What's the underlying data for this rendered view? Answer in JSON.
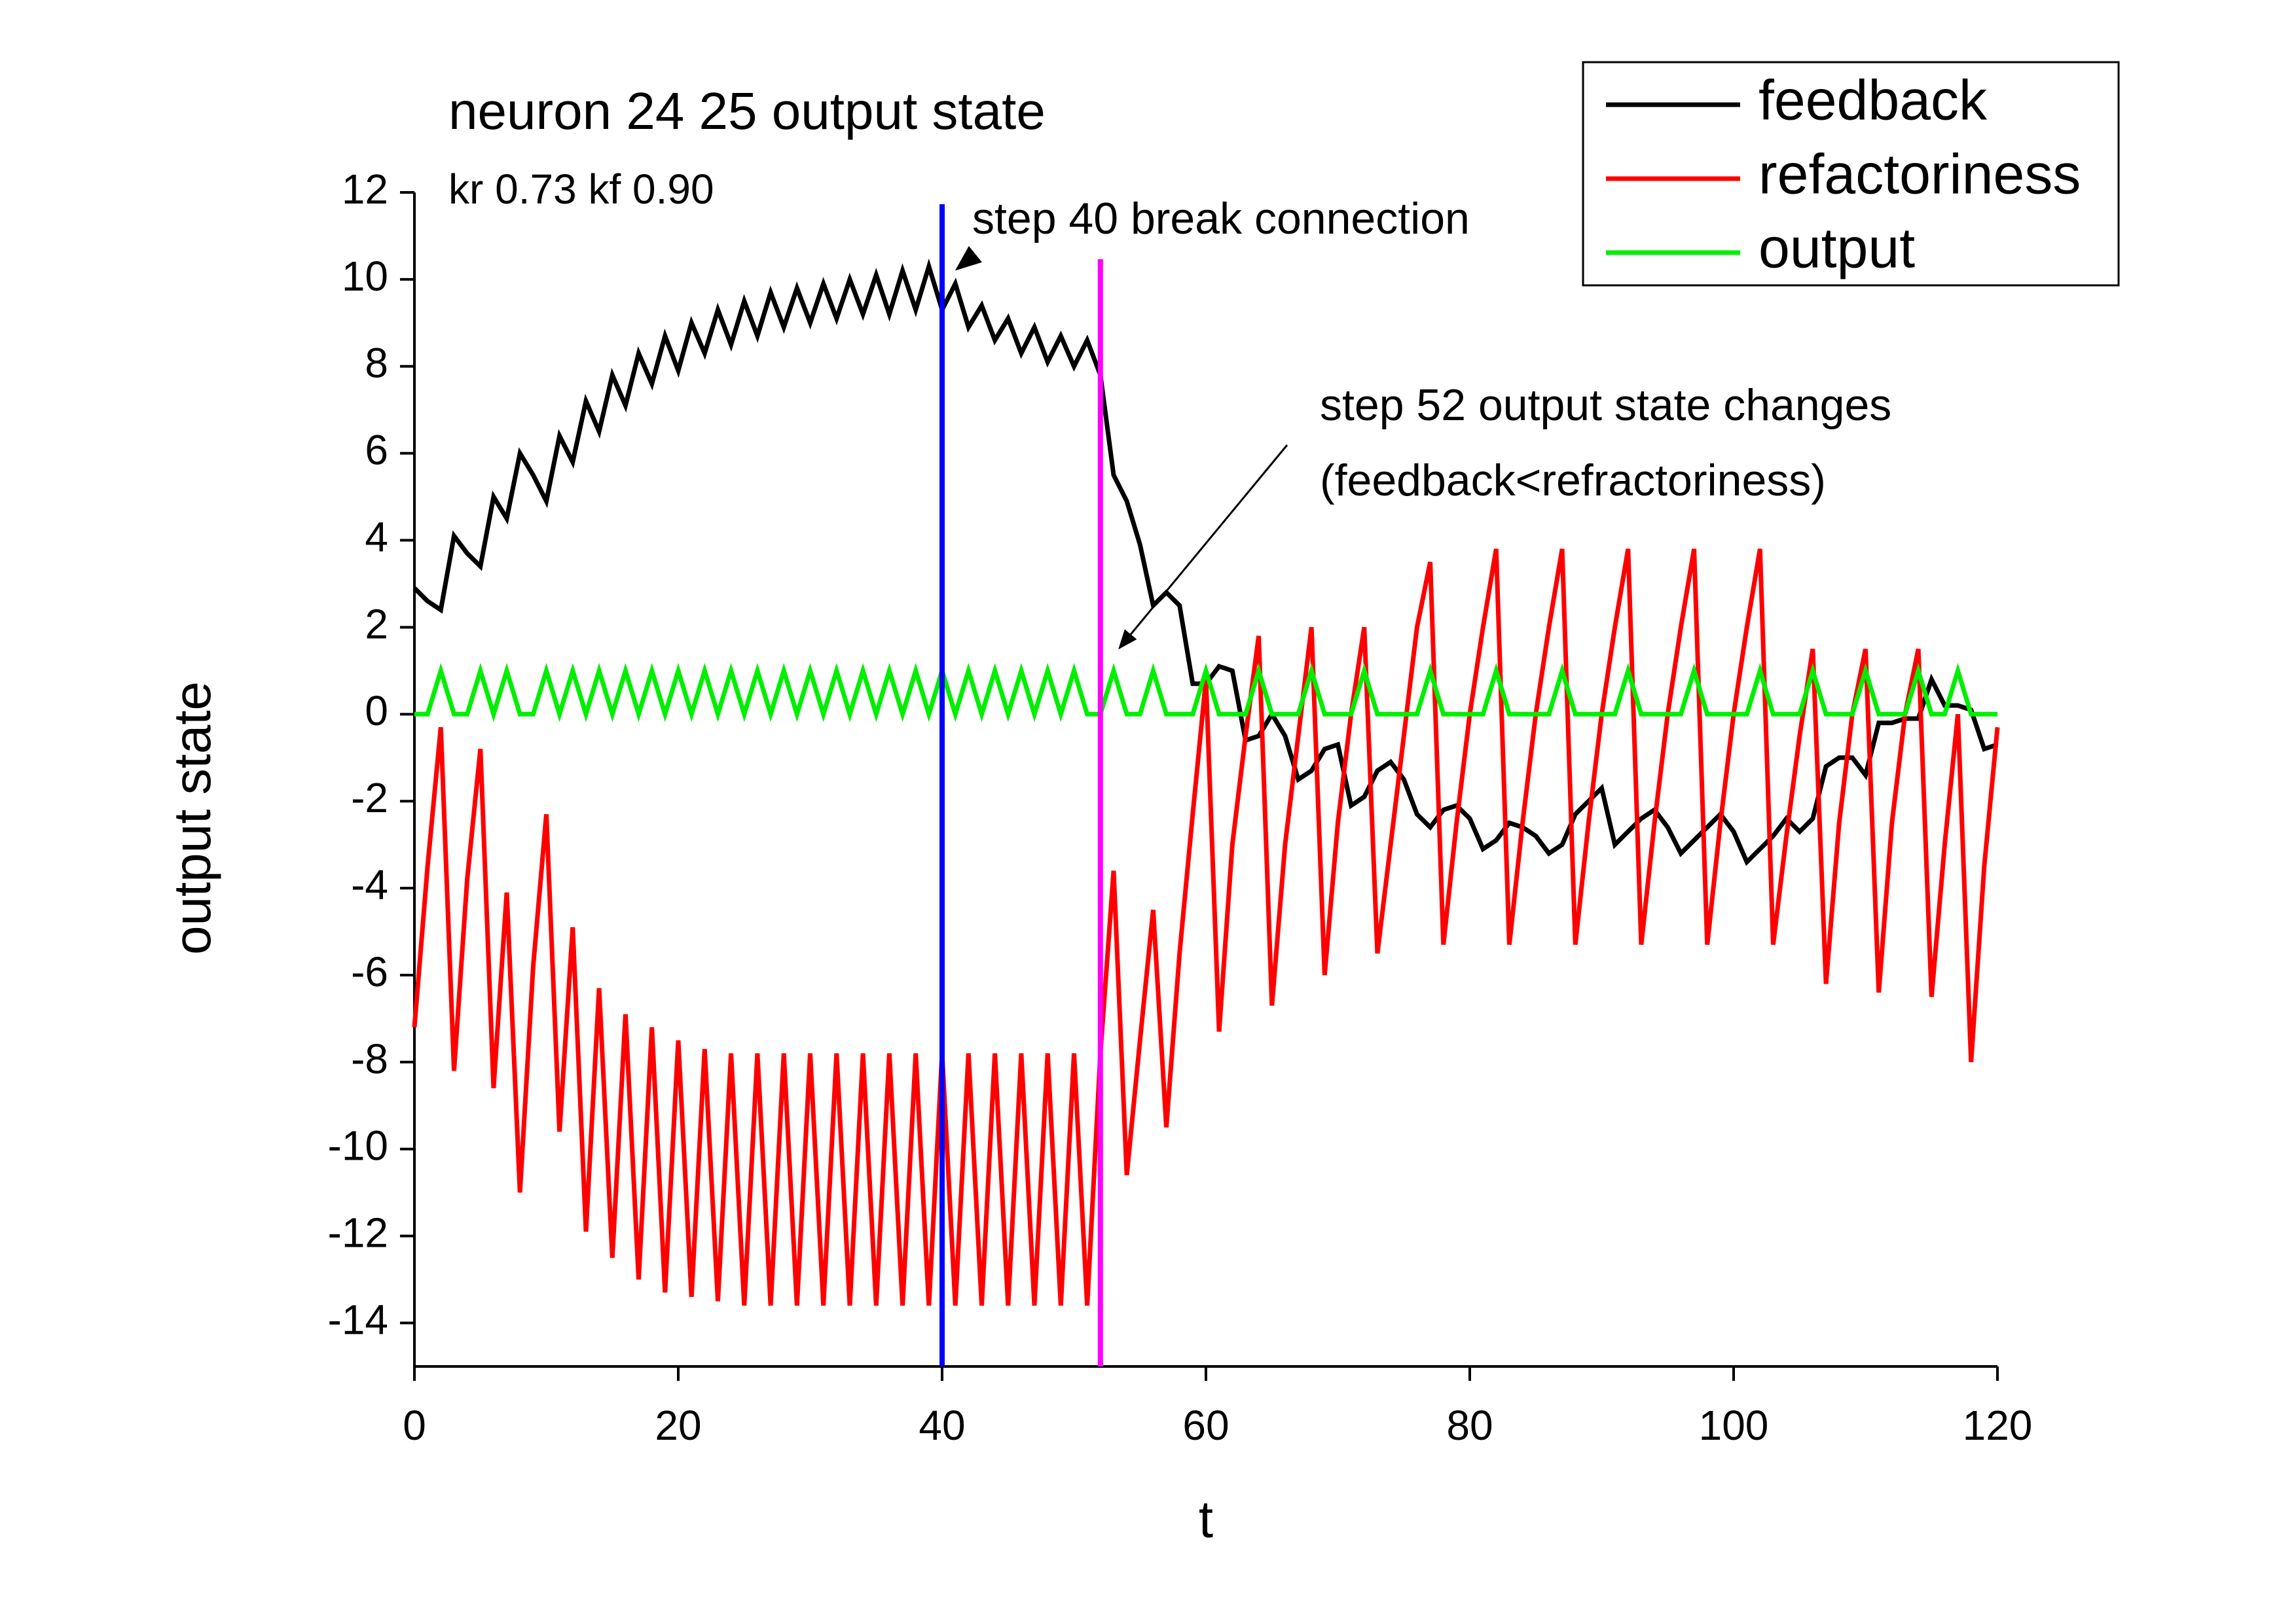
{
  "chart_data": {
    "type": "line",
    "title": "neuron 24 25 output state",
    "subtitle": "kr 0.73 kf 0.90",
    "x_label": "t",
    "y_label": "output state",
    "xlim": [
      0,
      120
    ],
    "xticks": [
      0,
      20,
      40,
      60,
      80,
      100,
      120
    ],
    "ylim": [
      -15,
      12
    ],
    "yticks": [
      -14,
      -12,
      -10,
      -8,
      -6,
      -4,
      -2,
      0,
      2,
      4,
      6,
      8,
      10,
      12
    ],
    "legend": "upper right",
    "x": [
      0,
      1,
      2,
      3,
      4,
      5,
      6,
      7,
      8,
      9,
      10,
      11,
      12,
      13,
      14,
      15,
      16,
      17,
      18,
      19,
      20,
      21,
      22,
      23,
      24,
      25,
      26,
      27,
      28,
      29,
      30,
      31,
      32,
      33,
      34,
      35,
      36,
      37,
      38,
      39,
      40,
      41,
      42,
      43,
      44,
      45,
      46,
      47,
      48,
      49,
      50,
      51,
      52,
      53,
      54,
      55,
      56,
      57,
      58,
      59,
      60,
      61,
      62,
      63,
      64,
      65,
      66,
      67,
      68,
      69,
      70,
      71,
      72,
      73,
      74,
      75,
      76,
      77,
      78,
      79,
      80,
      81,
      82,
      83,
      84,
      85,
      86,
      87,
      88,
      89,
      90,
      91,
      92,
      93,
      94,
      95,
      96,
      97,
      98,
      99,
      100,
      101,
      102,
      103,
      104,
      105,
      106,
      107,
      108,
      109,
      110,
      111,
      112,
      113,
      114,
      115,
      116,
      117,
      118,
      119,
      120
    ],
    "series": [
      {
        "name": "feedback",
        "color": "#000000",
        "values": [
          2.9,
          2.6,
          2.4,
          4.1,
          3.7,
          3.4,
          5.0,
          4.5,
          6.0,
          5.5,
          4.9,
          6.4,
          5.8,
          7.2,
          6.5,
          7.8,
          7.1,
          8.3,
          7.6,
          8.7,
          7.9,
          9.0,
          8.3,
          9.3,
          8.5,
          9.5,
          8.7,
          9.7,
          8.9,
          9.8,
          9.0,
          9.9,
          9.1,
          10.0,
          9.2,
          10.1,
          9.2,
          10.2,
          9.3,
          10.3,
          9.3,
          9.9,
          8.9,
          9.4,
          8.6,
          9.1,
          8.3,
          8.9,
          8.1,
          8.7,
          8.0,
          8.6,
          7.8,
          5.5,
          4.9,
          3.9,
          2.5,
          2.8,
          2.5,
          0.7,
          0.7,
          1.1,
          1.0,
          -0.6,
          -0.5,
          0.0,
          -0.5,
          -1.5,
          -1.3,
          -0.8,
          -0.7,
          -2.1,
          -1.9,
          -1.3,
          -1.1,
          -1.5,
          -2.3,
          -2.6,
          -2.2,
          -2.1,
          -2.4,
          -3.1,
          -2.9,
          -2.5,
          -2.6,
          -2.8,
          -3.2,
          -3.0,
          -2.3,
          -2.0,
          -1.7,
          -3.0,
          -2.7,
          -2.4,
          -2.2,
          -2.6,
          -3.2,
          -2.9,
          -2.6,
          -2.3,
          -2.7,
          -3.4,
          -3.1,
          -2.8,
          -2.4,
          -2.7,
          -2.4,
          -1.2,
          -1.0,
          -1.0,
          -1.4,
          -0.2,
          -0.2,
          -0.1,
          -0.1,
          0.8,
          0.2,
          0.2,
          0.1,
          -0.8,
          -0.7
        ]
      },
      {
        "name": "refactoriness",
        "color": "#ff0000",
        "values": [
          -7.2,
          -3.5,
          -0.3,
          -8.2,
          -3.8,
          -0.8,
          -8.6,
          -4.1,
          -11.0,
          -5.8,
          -2.3,
          -9.6,
          -4.9,
          -11.9,
          -6.3,
          -12.5,
          -6.9,
          -13.0,
          -7.2,
          -13.3,
          -7.5,
          -13.4,
          -7.7,
          -13.5,
          -7.8,
          -13.6,
          -7.8,
          -13.6,
          -7.8,
          -13.6,
          -7.8,
          -13.6,
          -7.8,
          -13.6,
          -7.8,
          -13.6,
          -7.8,
          -13.6,
          -7.8,
          -13.6,
          -7.8,
          -13.6,
          -7.8,
          -13.6,
          -7.8,
          -13.6,
          -7.8,
          -13.6,
          -7.8,
          -13.6,
          -7.8,
          -13.6,
          -7.8,
          -3.6,
          -10.6,
          -7.5,
          -4.5,
          -9.5,
          -5.5,
          -2.3,
          0.8,
          -7.3,
          -3.0,
          -0.5,
          1.8,
          -6.7,
          -3.0,
          -0.5,
          2.0,
          -6.0,
          -2.5,
          0.0,
          2.0,
          -5.5,
          -3.0,
          -0.5,
          2.0,
          3.5,
          -5.3,
          -2.5,
          0.0,
          2.0,
          3.8,
          -5.3,
          -2.5,
          0.0,
          2.0,
          3.8,
          -5.3,
          -2.5,
          0.0,
          2.0,
          3.8,
          -5.3,
          -2.5,
          0.0,
          2.0,
          3.8,
          -5.3,
          -2.5,
          0.0,
          2.0,
          3.8,
          -5.3,
          -2.8,
          -0.5,
          1.5,
          -6.2,
          -2.5,
          0.0,
          1.5,
          -6.4,
          -2.5,
          0.0,
          1.5,
          -6.5,
          -3.0,
          0.0,
          -8.0,
          -3.5,
          -0.3
        ]
      },
      {
        "name": "output",
        "color": "#00ee00",
        "values": [
          0,
          0,
          1,
          0,
          0,
          1,
          0,
          1,
          0,
          0,
          1,
          0,
          1,
          0,
          1,
          0,
          1,
          0,
          1,
          0,
          1,
          0,
          1,
          0,
          1,
          0,
          1,
          0,
          1,
          0,
          1,
          0,
          1,
          0,
          1,
          0,
          1,
          0,
          1,
          0,
          1,
          0,
          1,
          0,
          1,
          0,
          1,
          0,
          1,
          0,
          1,
          0,
          0,
          1,
          0,
          0,
          1,
          0,
          0,
          0,
          1,
          0,
          0,
          0,
          1,
          0,
          0,
          0,
          1,
          0,
          0,
          0,
          1,
          0,
          0,
          0,
          0,
          1,
          0,
          0,
          0,
          0,
          1,
          0,
          0,
          0,
          0,
          1,
          0,
          0,
          0,
          0,
          1,
          0,
          0,
          0,
          0,
          1,
          0,
          0,
          0,
          0,
          1,
          0,
          0,
          0,
          1,
          0,
          0,
          0,
          1,
          0,
          0,
          0,
          1,
          0,
          0,
          1,
          0,
          0,
          0
        ]
      }
    ],
    "vlines": [
      {
        "x": 40,
        "color": "#0000ff"
      },
      {
        "x": 52,
        "color": "#ff00ff"
      }
    ],
    "annotations": [
      {
        "text": "step 40 break connection"
      },
      {
        "text": "step 52 output state changes"
      },
      {
        "text": "(feedback<refractoriness)"
      }
    ]
  }
}
